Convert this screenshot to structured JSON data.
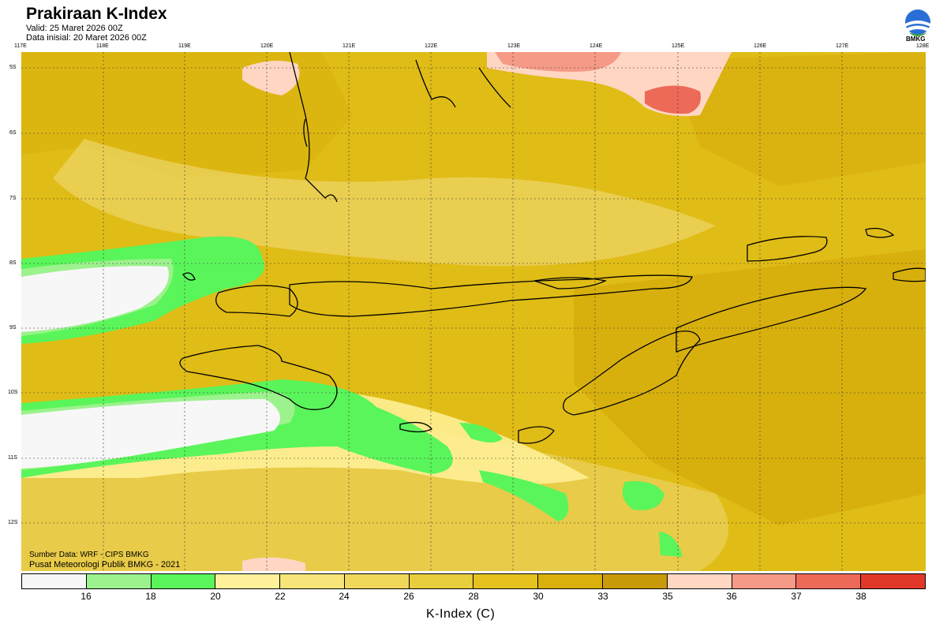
{
  "header": {
    "title": "Prakiraan K-Index",
    "valid": "Valid: 25 Maret 2026 00Z",
    "init": "Data inisial: 20 Maret 2026 00Z",
    "logo_text": "BMKG"
  },
  "map": {
    "lon_labels": [
      "117E",
      "118E",
      "119E",
      "120E",
      "121E",
      "122E",
      "123E",
      "124E",
      "125E",
      "126E",
      "127E",
      "128E"
    ],
    "lat_labels": [
      "5S",
      "6S",
      "7S",
      "8S",
      "9S",
      "10S",
      "11S",
      "12S"
    ],
    "source": "Sumber Data: WRF - CIPS BMKG",
    "credit": "Pusat Meteorologi Publik BMKG - 2021"
  },
  "colorbar": {
    "title": "K-Index (C)",
    "labels": [
      "16",
      "18",
      "20",
      "22",
      "24",
      "26",
      "28",
      "30",
      "33",
      "35",
      "36",
      "37",
      "38"
    ],
    "colors": [
      "#f7f7f7",
      "#9cf28c",
      "#5af55a",
      "#fff29a",
      "#f7e57a",
      "#f0d85a",
      "#e8cd3c",
      "#e6c21e",
      "#d9b00c",
      "#c99a0a",
      "#ffd6c2",
      "#f59a86",
      "#ee6a58",
      "#e2382a"
    ]
  },
  "regions": {
    "k_lt_16": "#f7f7f7",
    "k_16_18": "#9cf28c",
    "k_18_20": "#5af55a",
    "k_20_22": "#fff29a",
    "k_22_24": "#f7e57a",
    "k_30_33": "#d9b00c",
    "k_35_36": "#ffd6c2",
    "k_36_37": "#f59a86",
    "k_37_38": "#ee6a58"
  }
}
